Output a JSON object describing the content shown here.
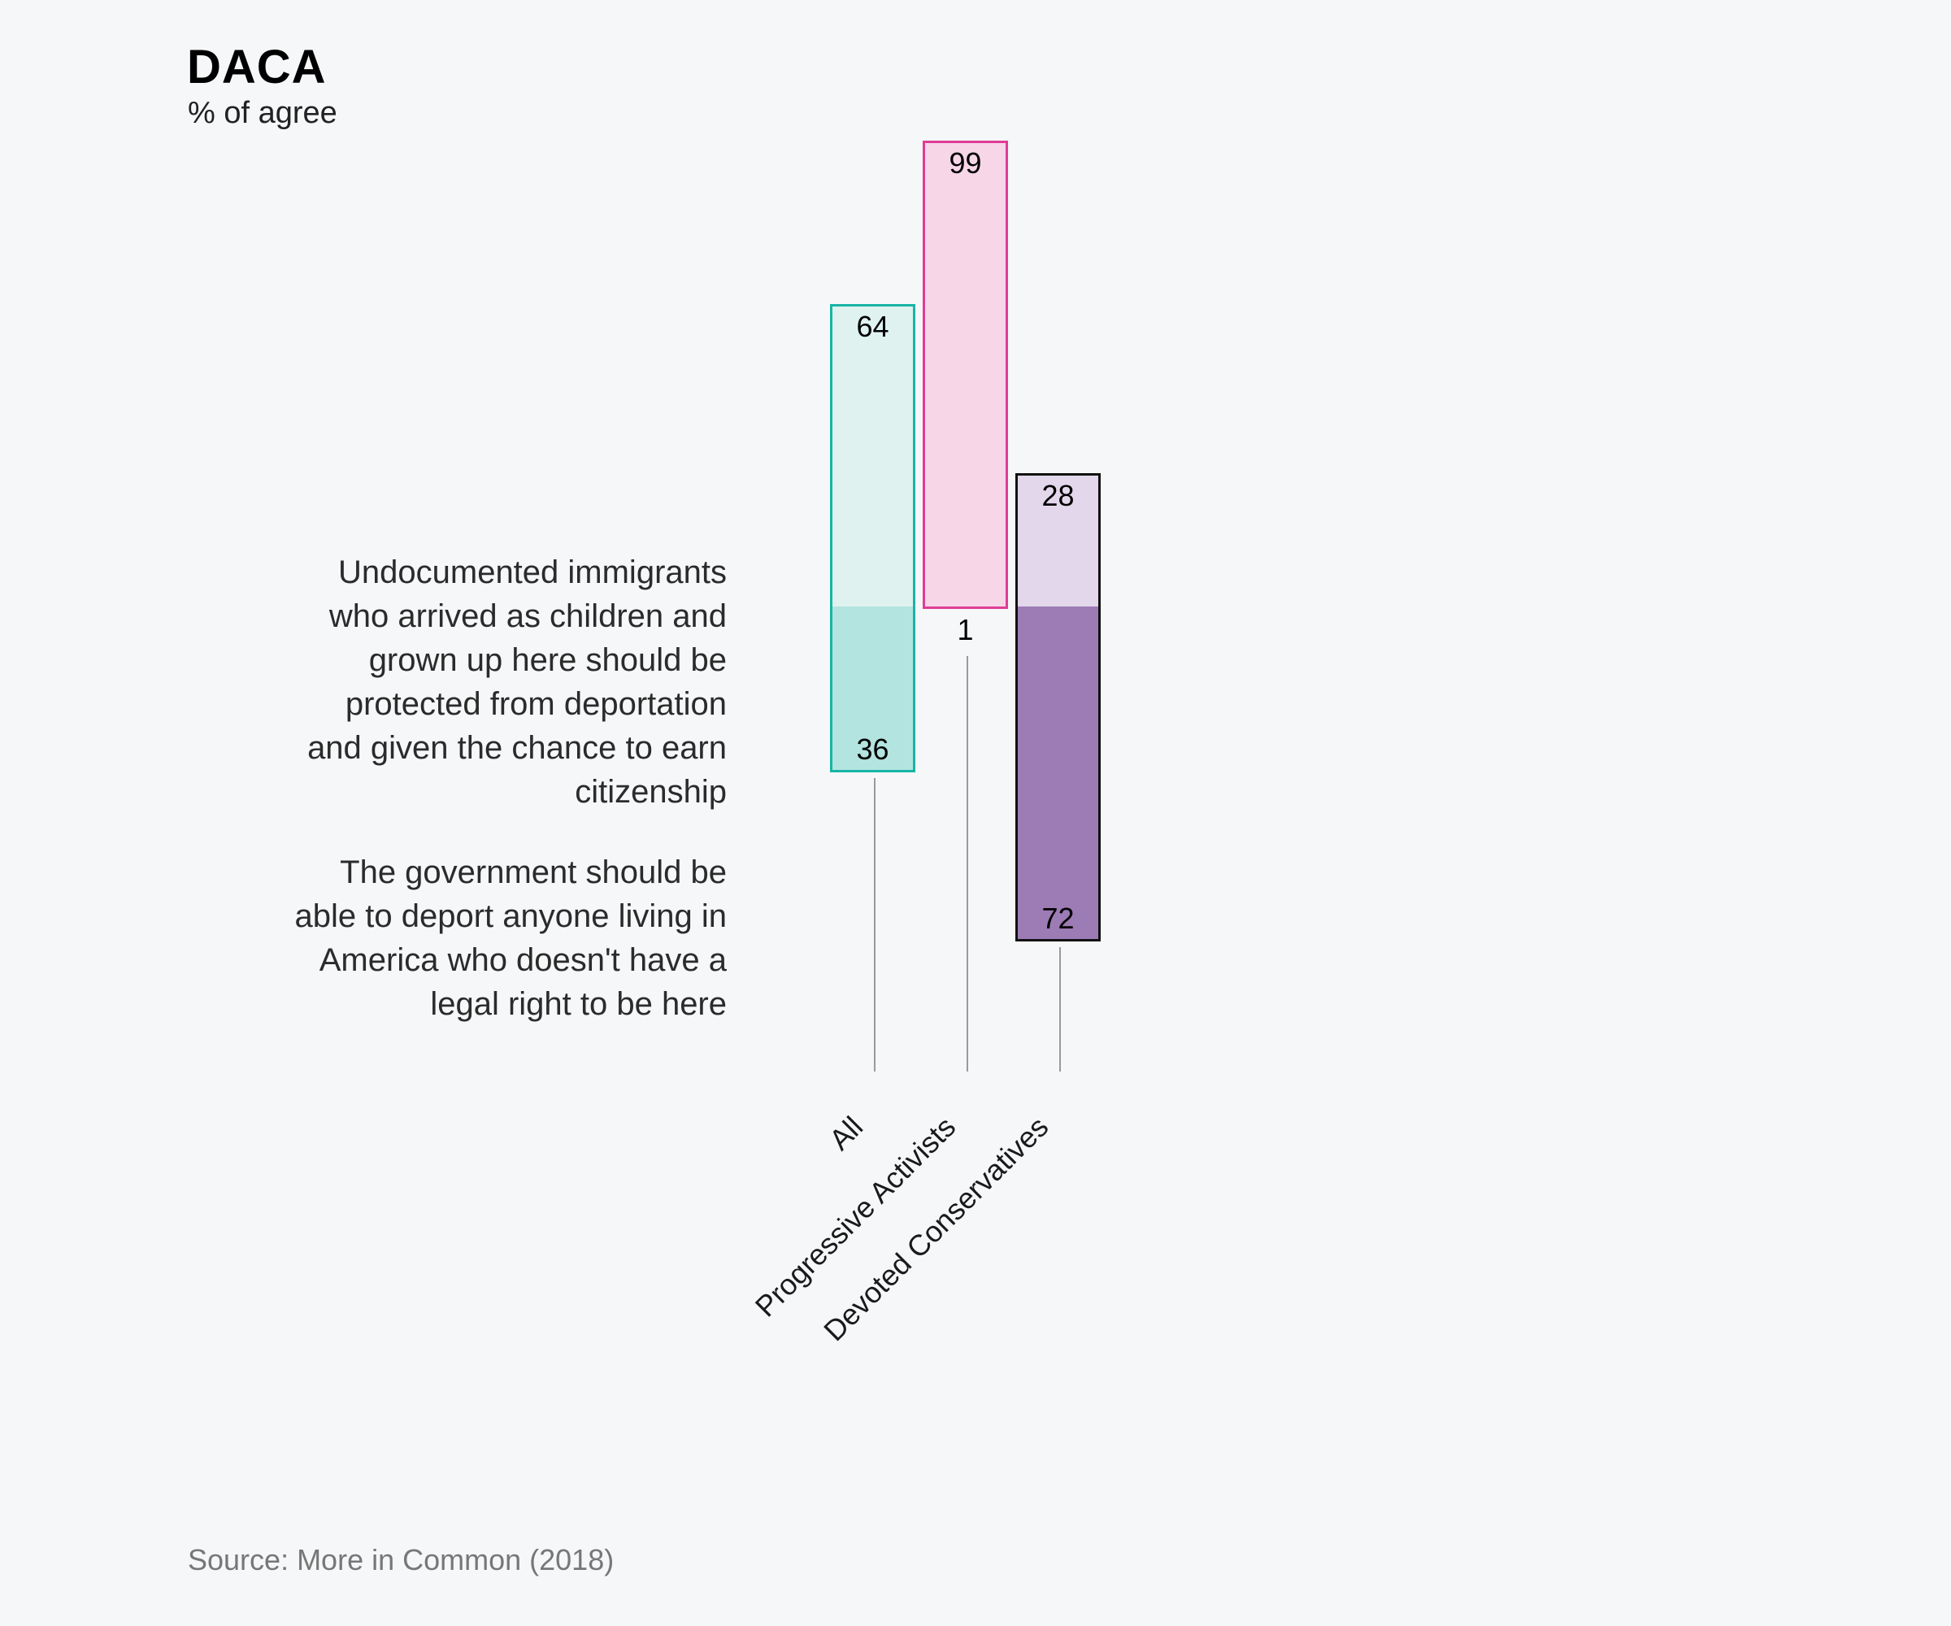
{
  "header": {
    "title": "DACA",
    "subtitle": "% of agree"
  },
  "statements": {
    "agree_protect": {
      "lines": [
        "Undocumented immigrants",
        "who arrived as children and",
        "grown up here should be",
        "protected from deportation",
        "and given the chance to earn",
        "citizenship"
      ]
    },
    "agree_deport": {
      "lines": [
        "The government should be",
        "able to deport anyone living in",
        "America who doesn't have a",
        "legal right to be here"
      ]
    }
  },
  "footer": {
    "source": "Source: More in Common (2018)"
  },
  "colors": {
    "background": "#f5f7f8",
    "stem": "#9a9a9a"
  },
  "chart_data": {
    "type": "bar",
    "subtype": "diverging-stacked",
    "title": "DACA",
    "subtitle": "% of agree",
    "categories": [
      "All",
      "Progressive Activists",
      "Devoted Conservatives"
    ],
    "series": [
      {
        "name": "Undocumented immigrants who arrived as children and grown up here should be protected from deportation and given the chance to earn citizenship",
        "direction": "up",
        "values": [
          64,
          99,
          28
        ]
      },
      {
        "name": "The government should be able to deport anyone living in America who doesn't have a legal right to be here",
        "direction": "down",
        "values": [
          36,
          1,
          72
        ]
      }
    ],
    "bar_styles": [
      {
        "border": "#17b5a5",
        "up_fill": "#dff2f0",
        "down_fill": "#b3e4df"
      },
      {
        "border": "#e03c96",
        "up_fill": "#f7d6e8",
        "down_fill": "#e27bb4"
      },
      {
        "border": "#111111",
        "up_fill": "#e3d7eb",
        "down_fill": "#9d7bb5"
      }
    ],
    "xlabel": "",
    "ylabel": "% of agree",
    "ylim": [
      -100,
      100
    ],
    "grid": false,
    "legend": "none (statements labeled left of bars)",
    "source": "Source: More in Common (2018)"
  }
}
